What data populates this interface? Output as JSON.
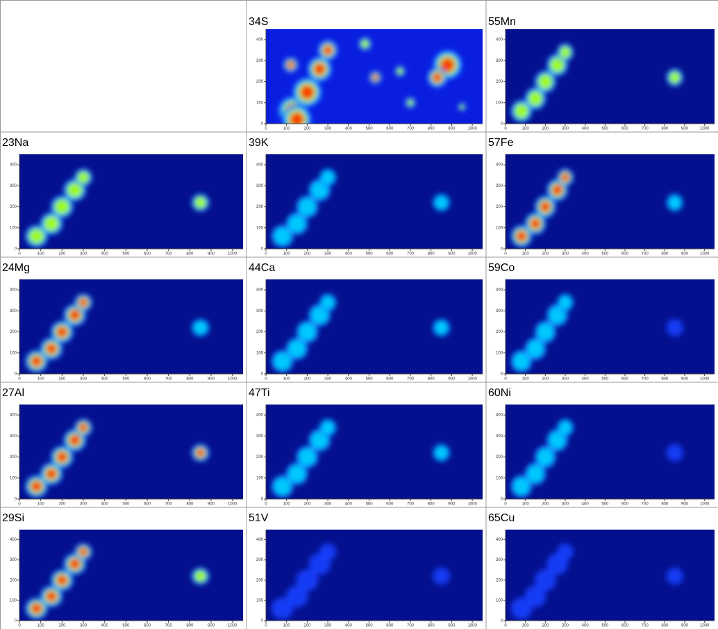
{
  "chart_data": [
    {
      "type": "heatmap",
      "title": "34S",
      "xlim": [
        0,
        1050
      ],
      "ylim": [
        0,
        450
      ],
      "xticks": [
        0,
        100,
        200,
        300,
        400,
        500,
        600,
        700,
        800,
        900,
        1000
      ],
      "yticks": [
        0,
        100,
        200,
        300,
        400
      ]
    },
    {
      "type": "heatmap",
      "title": "55Mn",
      "xlim": [
        0,
        1050
      ],
      "ylim": [
        0,
        450
      ],
      "xticks": [
        0,
        100,
        200,
        300,
        400,
        500,
        600,
        700,
        800,
        900,
        1000
      ],
      "yticks": [
        0,
        100,
        200,
        300,
        400
      ]
    },
    {
      "type": "heatmap",
      "title": "23Na",
      "xlim": [
        0,
        1050
      ],
      "ylim": [
        0,
        450
      ],
      "xticks": [
        0,
        100,
        200,
        300,
        400,
        500,
        600,
        700,
        800,
        900,
        1000
      ],
      "yticks": [
        0,
        100,
        200,
        300,
        400
      ]
    },
    {
      "type": "heatmap",
      "title": "39K",
      "xlim": [
        0,
        1050
      ],
      "ylim": [
        0,
        450
      ],
      "xticks": [
        0,
        100,
        200,
        300,
        400,
        500,
        600,
        700,
        800,
        900,
        1000
      ],
      "yticks": [
        0,
        100,
        200,
        300,
        400
      ]
    },
    {
      "type": "heatmap",
      "title": "57Fe",
      "xlim": [
        0,
        1050
      ],
      "ylim": [
        0,
        450
      ],
      "xticks": [
        0,
        100,
        200,
        300,
        400,
        500,
        600,
        700,
        800,
        900,
        1000
      ],
      "yticks": [
        0,
        100,
        200,
        300,
        400
      ]
    },
    {
      "type": "heatmap",
      "title": "24Mg",
      "xlim": [
        0,
        1050
      ],
      "ylim": [
        0,
        450
      ],
      "xticks": [
        0,
        100,
        200,
        300,
        400,
        500,
        600,
        700,
        800,
        900,
        1000
      ],
      "yticks": [
        0,
        100,
        200,
        300,
        400
      ]
    },
    {
      "type": "heatmap",
      "title": "44Ca",
      "xlim": [
        0,
        1050
      ],
      "ylim": [
        0,
        450
      ],
      "xticks": [
        0,
        100,
        200,
        300,
        400,
        500,
        600,
        700,
        800,
        900,
        1000
      ],
      "yticks": [
        0,
        100,
        200,
        300,
        400
      ]
    },
    {
      "type": "heatmap",
      "title": "59Co",
      "xlim": [
        0,
        1050
      ],
      "ylim": [
        0,
        450
      ],
      "xticks": [
        0,
        100,
        200,
        300,
        400,
        500,
        600,
        700,
        800,
        900,
        1000
      ],
      "yticks": [
        0,
        100,
        200,
        300,
        400
      ]
    },
    {
      "type": "heatmap",
      "title": "27Al",
      "xlim": [
        0,
        1050
      ],
      "ylim": [
        0,
        450
      ],
      "xticks": [
        0,
        100,
        200,
        300,
        400,
        500,
        600,
        700,
        800,
        900,
        1000
      ],
      "yticks": [
        0,
        100,
        200,
        300,
        400
      ]
    },
    {
      "type": "heatmap",
      "title": "47Ti",
      "xlim": [
        0,
        1050
      ],
      "ylim": [
        0,
        450
      ],
      "xticks": [
        0,
        100,
        200,
        300,
        400,
        500,
        600,
        700,
        800,
        900,
        1000
      ],
      "yticks": [
        0,
        100,
        200,
        300,
        400
      ]
    },
    {
      "type": "heatmap",
      "title": "60Ni",
      "xlim": [
        0,
        1050
      ],
      "ylim": [
        0,
        450
      ],
      "xticks": [
        0,
        100,
        200,
        300,
        400,
        500,
        600,
        700,
        800,
        900,
        1000
      ],
      "yticks": [
        0,
        100,
        200,
        300,
        400
      ]
    },
    {
      "type": "heatmap",
      "title": "29Si",
      "xlim": [
        0,
        1050
      ],
      "ylim": [
        0,
        450
      ],
      "xticks": [
        0,
        100,
        200,
        300,
        400,
        500,
        600,
        700,
        800,
        900,
        1000
      ],
      "yticks": [
        0,
        100,
        200,
        300,
        400
      ]
    },
    {
      "type": "heatmap",
      "title": "51V",
      "xlim": [
        0,
        1050
      ],
      "ylim": [
        0,
        450
      ],
      "xticks": [
        0,
        100,
        200,
        300,
        400,
        500,
        600,
        700,
        800,
        900,
        1000
      ],
      "yticks": [
        0,
        100,
        200,
        300,
        400
      ]
    },
    {
      "type": "heatmap",
      "title": "65Cu",
      "xlim": [
        0,
        1050
      ],
      "ylim": [
        0,
        450
      ],
      "xticks": [
        0,
        100,
        200,
        300,
        400,
        500,
        600,
        700,
        800,
        900,
        1000
      ],
      "yticks": [
        0,
        100,
        200,
        300,
        400
      ]
    }
  ]
}
